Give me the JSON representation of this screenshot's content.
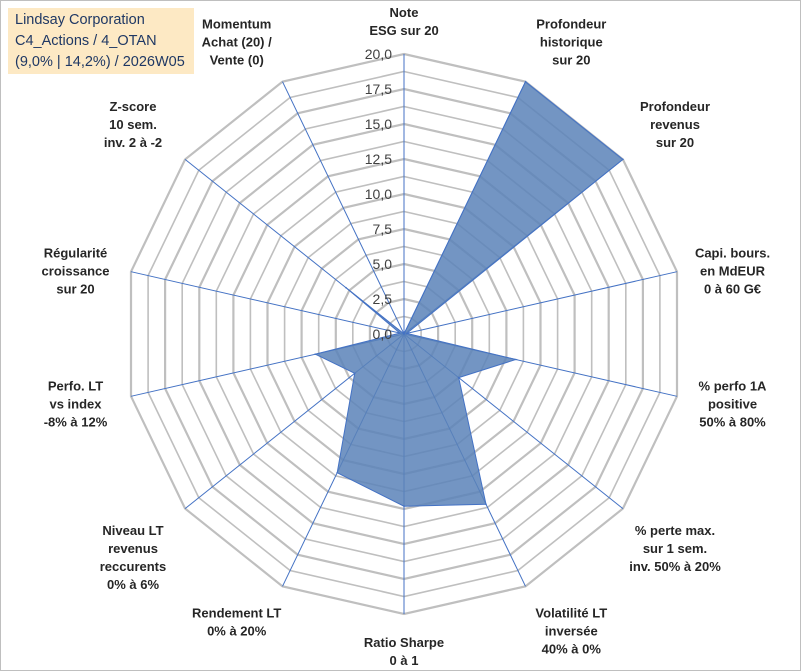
{
  "title_lines": [
    "Lindsay Corporation",
    "C4_Actions / 4_OTAN",
    "(9,0% | 14,2%) / 2026W05"
  ],
  "colors": {
    "fill": "#5b82b8",
    "stroke": "#4472c4",
    "grid": "#bfbfbf",
    "spoke": "#4472c4",
    "title_bg": "#fde9c4"
  },
  "chart_data": {
    "type": "radar",
    "range": [
      0,
      20
    ],
    "tick_step": 2.5,
    "tick_labels": [
      "0,0",
      "2,5",
      "5,0",
      "7,5",
      "10,0",
      "12,5",
      "15,0",
      "17,5",
      "20,0"
    ],
    "axes": [
      {
        "label": [
          "Note",
          "ESG sur 20"
        ],
        "value": 0
      },
      {
        "label": [
          "Profondeur",
          "historique",
          "sur 20"
        ],
        "value": 20
      },
      {
        "label": [
          "Profondeur",
          "revenus",
          "sur 20"
        ],
        "value": 20
      },
      {
        "label": [
          "Capi. bours.",
          "en MdEUR",
          "0 à 60 G€"
        ],
        "value": 0.2
      },
      {
        "label": [
          "% perfo 1A",
          "positive",
          "50% à 80%"
        ],
        "value": 8.2
      },
      {
        "label": [
          "% perte max.",
          "sur 1 sem.",
          "inv. 50% à 20%"
        ],
        "value": 5
      },
      {
        "label": [
          "Volatilité LT",
          "inversée",
          "40% à 0%"
        ],
        "value": 13.5
      },
      {
        "label": [
          "Ratio Sharpe",
          "0 à 1"
        ],
        "value": 12.3
      },
      {
        "label": [
          "Rendement LT",
          "0% à 20%"
        ],
        "value": 11
      },
      {
        "label": [
          "Niveau LT",
          "revenus",
          "reccurents",
          "0% à 6%"
        ],
        "value": 4.5
      },
      {
        "label": [
          "Perfo. LT",
          "vs index",
          "-8% à 12%"
        ],
        "value": 6.5
      },
      {
        "label": [
          "Régularité",
          "croissance",
          "sur 20"
        ],
        "value": 0.3
      },
      {
        "label": [
          "Z-score",
          "10 sem.",
          "inv. 2 à -2"
        ],
        "value": 5.3
      },
      {
        "label": [
          "Momentum",
          "Achat (20) /",
          "Vente (0)"
        ],
        "value": 0
      }
    ]
  }
}
